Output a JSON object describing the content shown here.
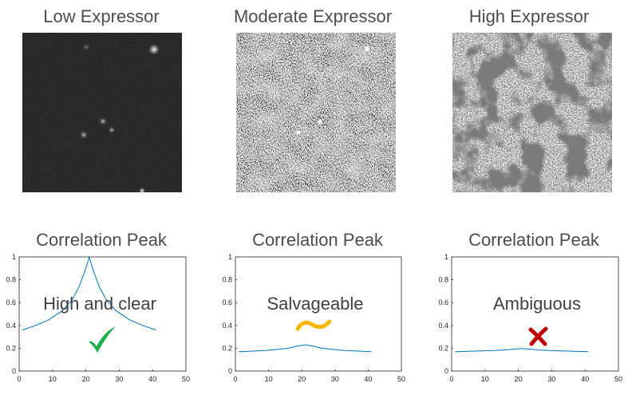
{
  "panels": [
    {
      "id": "low",
      "title": "Low Expressor",
      "plot_title": "Correlation Peak",
      "verdict": "High and clear",
      "verdict_icon": "checkmark-icon",
      "icon_color": "#1bb04a"
    },
    {
      "id": "moderate",
      "title": "Moderate Expressor",
      "plot_title": "Correlation Peak",
      "verdict": "Salvageable",
      "verdict_icon": "tilde-icon",
      "icon_color": "#f5b800"
    },
    {
      "id": "high",
      "title": "High Expressor",
      "plot_title": "Correlation Peak",
      "verdict": "Ambiguous",
      "verdict_icon": "cross-icon",
      "icon_color": "#c00000"
    }
  ],
  "chart_data": [
    {
      "type": "line",
      "title": "Correlation Peak",
      "xlim": [
        0,
        50
      ],
      "ylim": [
        0,
        1
      ],
      "xticks": [
        0,
        10,
        20,
        30,
        40,
        50
      ],
      "yticks": [
        0,
        0.2,
        0.4,
        0.6,
        0.8,
        1
      ],
      "line_color": "#0072bd",
      "series": [
        {
          "x": [
            1,
            5,
            9,
            13,
            16,
            18,
            19,
            20,
            21,
            22,
            23,
            24,
            26,
            29,
            33,
            37,
            41
          ],
          "y": [
            0.36,
            0.4,
            0.45,
            0.53,
            0.63,
            0.74,
            0.82,
            0.9,
            1.0,
            0.9,
            0.82,
            0.74,
            0.63,
            0.53,
            0.45,
            0.4,
            0.36
          ]
        }
      ]
    },
    {
      "type": "line",
      "title": "Correlation Peak",
      "xlim": [
        0,
        50
      ],
      "ylim": [
        0,
        1
      ],
      "xticks": [
        0,
        10,
        20,
        30,
        40,
        50
      ],
      "yticks": [
        0,
        0.2,
        0.4,
        0.6,
        0.8,
        1
      ],
      "line_color": "#0072bd",
      "series": [
        {
          "x": [
            1,
            5,
            9,
            13,
            16,
            18,
            20,
            21,
            22,
            24,
            26,
            29,
            33,
            37,
            41
          ],
          "y": [
            0.17,
            0.175,
            0.18,
            0.19,
            0.2,
            0.215,
            0.225,
            0.23,
            0.225,
            0.215,
            0.2,
            0.19,
            0.18,
            0.175,
            0.17
          ]
        }
      ]
    },
    {
      "type": "line",
      "title": "Correlation Peak",
      "xlim": [
        0,
        50
      ],
      "ylim": [
        0,
        1
      ],
      "xticks": [
        0,
        10,
        20,
        30,
        40,
        50
      ],
      "yticks": [
        0,
        0.2,
        0.4,
        0.6,
        0.8,
        1
      ],
      "line_color": "#0072bd",
      "series": [
        {
          "x": [
            1,
            5,
            9,
            13,
            16,
            18,
            20,
            21,
            22,
            24,
            26,
            29,
            33,
            37,
            41
          ],
          "y": [
            0.17,
            0.173,
            0.176,
            0.18,
            0.185,
            0.19,
            0.195,
            0.197,
            0.195,
            0.19,
            0.185,
            0.18,
            0.176,
            0.173,
            0.17
          ]
        }
      ]
    }
  ]
}
